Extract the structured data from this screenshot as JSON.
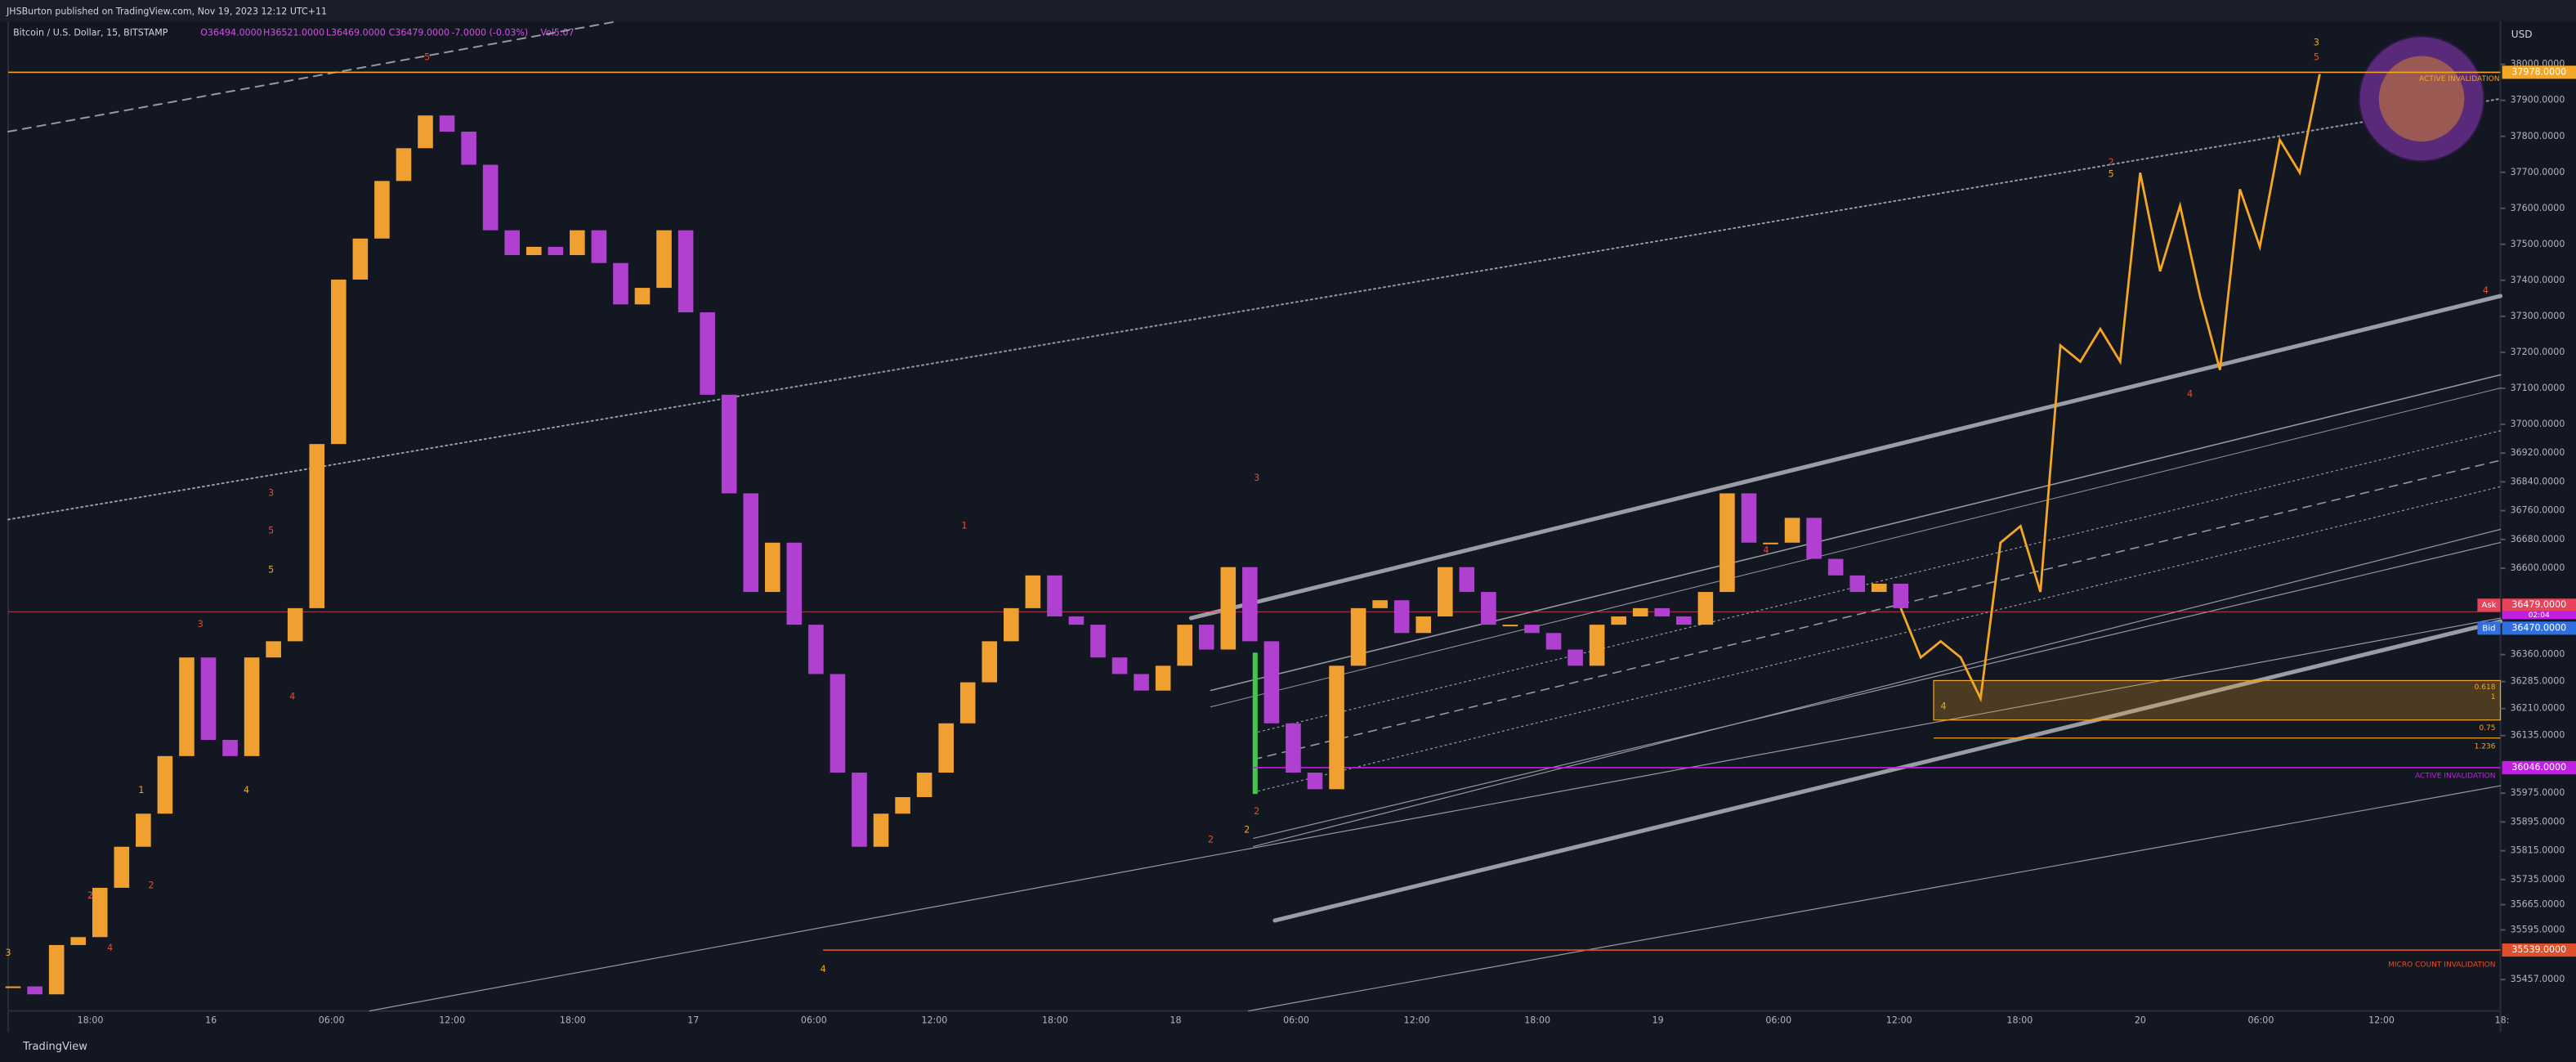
{
  "header": {
    "publisher": "JHSBurton published on TradingView.com, Nov 19, 2023 12:12 UTC+11",
    "symbol": "Bitcoin / U.S. Dollar, 15, BITSTAMP",
    "ohlc": [
      "O36494.0000",
      "H36521.0000",
      "L36469.0000",
      "C36479.0000",
      "-7.0000 (-0.03%)",
      "Vol5.07"
    ]
  },
  "chart_data": {
    "type": "candlestick",
    "currency": "USD",
    "ylim": [
      35370,
      38119
    ],
    "yticks": [
      {
        "value": 38000,
        "label": "38000.0000"
      },
      {
        "value": 37900,
        "label": "37900.0000"
      },
      {
        "value": 37800,
        "label": "37800.0000"
      },
      {
        "value": 37700,
        "label": "37700.0000"
      },
      {
        "value": 37600,
        "label": "37600.0000"
      },
      {
        "value": 37500,
        "label": "37500.0000"
      },
      {
        "value": 37400,
        "label": "37400.0000"
      },
      {
        "value": 37300,
        "label": "37300.0000"
      },
      {
        "value": 37200,
        "label": "37200.0000"
      },
      {
        "value": 37100,
        "label": "37100.0000"
      },
      {
        "value": 37000,
        "label": "37000.0000"
      },
      {
        "value": 36920,
        "label": "36920.0000"
      },
      {
        "value": 36840,
        "label": "36840.0000"
      },
      {
        "value": 36760,
        "label": "36760.0000"
      },
      {
        "value": 36680,
        "label": "36680.0000"
      },
      {
        "value": 36600,
        "label": "36600.0000"
      },
      {
        "value": 36360,
        "label": "36360.0000"
      },
      {
        "value": 36285,
        "label": "36285.0000"
      },
      {
        "value": 36210,
        "label": "36210.0000"
      },
      {
        "value": 36135,
        "label": "36135.0000"
      },
      {
        "value": 35975,
        "label": "35975.0000"
      },
      {
        "value": 35895,
        "label": "35895.0000"
      },
      {
        "value": 35815,
        "label": "35815.0000"
      },
      {
        "value": 35735,
        "label": "35735.0000"
      },
      {
        "value": 35665,
        "label": "35665.0000"
      },
      {
        "value": 35595,
        "label": "35595.0000"
      },
      {
        "value": 35457,
        "label": "35457.0000"
      }
    ],
    "time_labels": [
      "18:00",
      "16",
      "06:00",
      "12:00",
      "18:00",
      "17",
      "06:00",
      "12:00",
      "18:00",
      "18",
      "06:00",
      "12:00",
      "18:00",
      "19",
      "06:00",
      "12:00",
      "18:00",
      "20",
      "06:00",
      "12:00",
      "18:"
    ],
    "up_color": "#f0a030",
    "down_color": "#b040d0",
    "values": [
      35438,
      35416,
      35553,
      35575,
      35712,
      35826,
      35918,
      36078,
      36352,
      36123,
      36078,
      36352,
      36397,
      36489,
      36945,
      37402,
      37516,
      37676,
      37767,
      37858,
      37813,
      37721,
      37539,
      37470,
      37493,
      37470,
      37539,
      37448,
      37333,
      37379,
      37539,
      37311,
      37082,
      36808,
      36534,
      36671,
      36443,
      36306,
      36032,
      35826,
      35918,
      35964,
      36032,
      36169,
      36283,
      36397,
      36489,
      36580,
      36466,
      36443,
      36352,
      36306,
      36260,
      36329,
      36443,
      36374,
      36603,
      36397,
      36169,
      36032,
      35986,
      36329,
      36489,
      36511,
      36420,
      36466,
      36603,
      36534,
      36443,
      36443,
      36420,
      36374,
      36329,
      36443,
      36466,
      36489,
      36466,
      36443,
      36534,
      36808,
      36671,
      36671,
      36740,
      36626,
      36580,
      36534,
      36557,
      36489
    ],
    "projection": {
      "color": "#f5a623",
      "values": [
        36489,
        36352,
        36397,
        36352,
        36238,
        36671,
        36717,
        36534,
        37219,
        37174,
        37265,
        37174,
        37699,
        37425,
        37607,
        37356,
        37151,
        37653,
        37493,
        37790,
        37699,
        37973
      ]
    },
    "price_labels": [
      {
        "value": 37978,
        "label": "37978.0000",
        "color": "#f5a623"
      },
      {
        "name": "Ask",
        "value": 36479,
        "label": "36479.0000",
        "color": "#e8435a"
      },
      {
        "name": "Bid",
        "value": 36470,
        "label": "36470.0000",
        "color": "#2f6fe0"
      },
      {
        "value": 36046,
        "label": "36046.0000",
        "color": "#c020e0"
      },
      {
        "value": 35539,
        "label": "35539.0000",
        "color": "#e0502a"
      }
    ],
    "countdown": "02:04",
    "annotations": {
      "active_top": "ACTIVE INVALIDATION",
      "active": "ACTIVE INVALIDATION",
      "micro": "MICRO COUNT INVALIDATION",
      "fib": [
        "0.618",
        "1",
        "0.75",
        "1.236"
      ]
    },
    "wave_labels": [
      "3",
      "2",
      "4",
      "1",
      "2",
      "3",
      "4",
      "3",
      "5",
      "5",
      "4",
      "5",
      "4",
      "1",
      "2",
      "2",
      "2",
      "3",
      "5",
      "2",
      "4",
      "3",
      "5",
      "4",
      "4",
      "4"
    ]
  },
  "footer": "TradingView"
}
